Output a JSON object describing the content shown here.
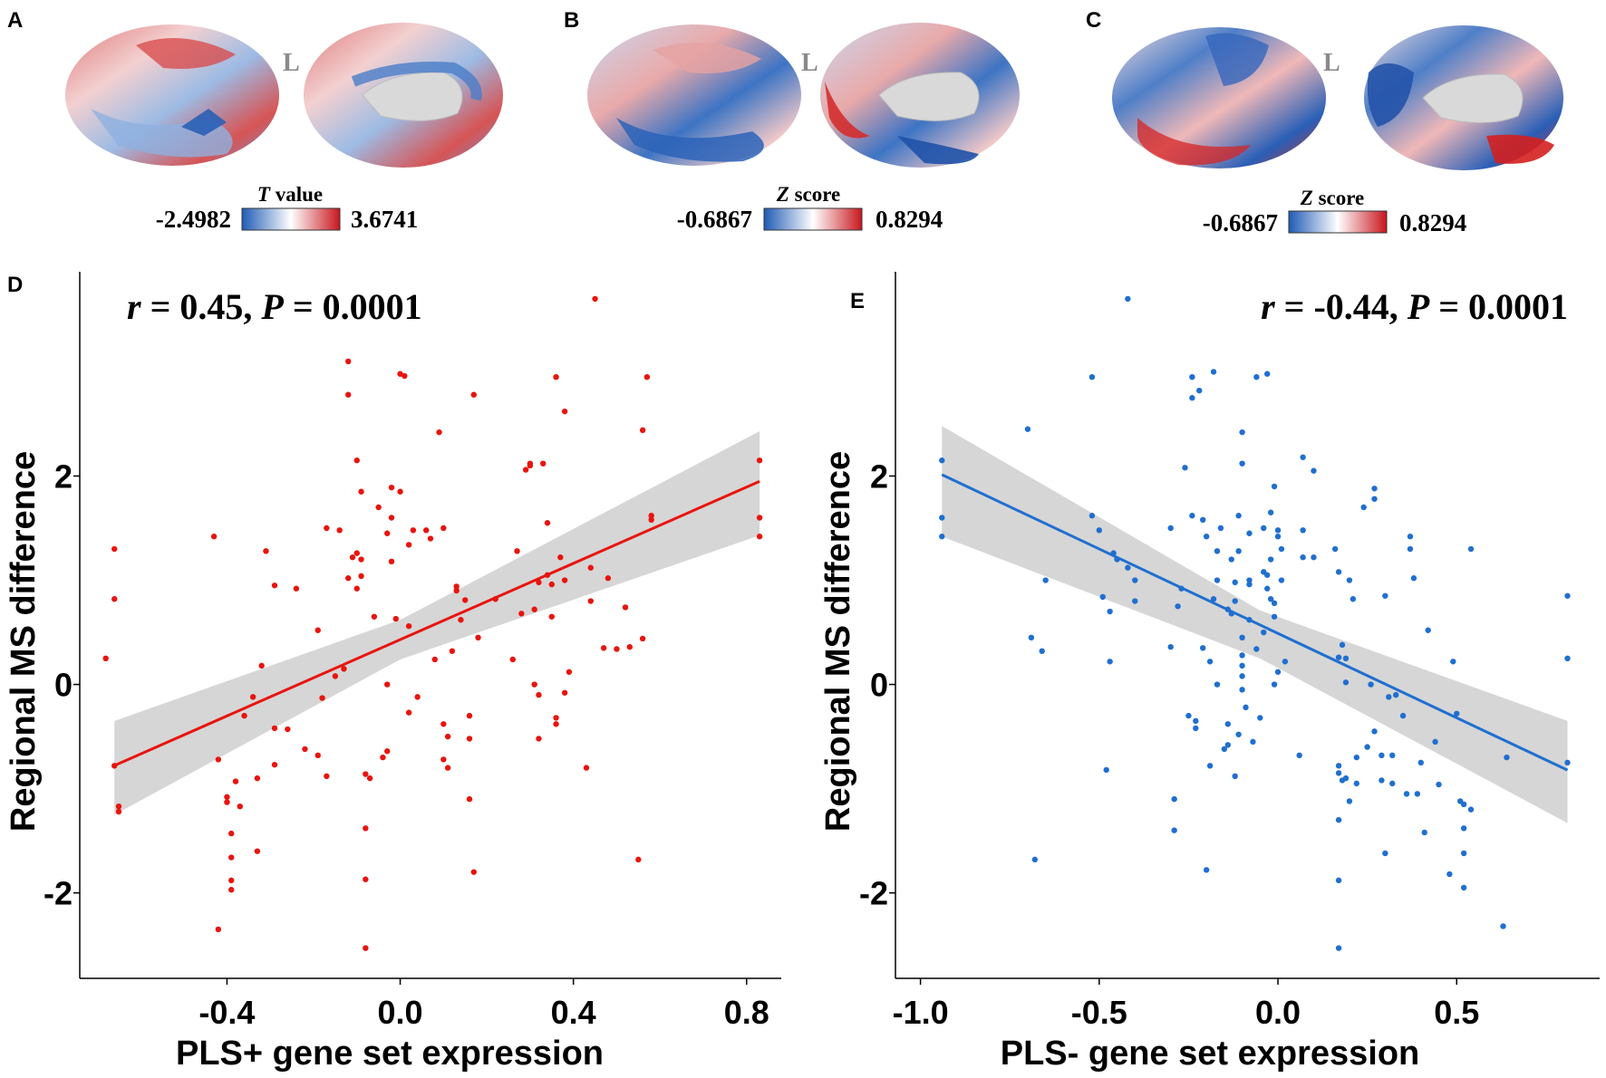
{
  "colors": {
    "neg": "#1f5bb4",
    "mid": "#ffffff",
    "pos": "#c8161e",
    "red_line": "#e8140e",
    "blue_line": "#1f6fd0",
    "band": "#d6d6d6",
    "brain_gray": "#d9d9d9"
  },
  "brains": [
    {
      "panel": "A",
      "hemisphere_label": "L",
      "scale_title_italic": "T",
      "scale_title_rest": " value",
      "min_label": "-2.4982",
      "max_label": "3.6741"
    },
    {
      "panel": "B",
      "hemisphere_label": "L",
      "scale_title_italic": "Z",
      "scale_title_rest": " score",
      "min_label": "-0.6867",
      "max_label": "0.8294"
    },
    {
      "panel": "C",
      "hemisphere_label": "L",
      "scale_title_italic": "Z",
      "scale_title_rest": " score",
      "min_label": "-0.6867",
      "max_label": "0.8294"
    }
  ],
  "chart_data": [
    {
      "panel": "D",
      "type": "scatter",
      "title": "",
      "xlabel": "PLS+ gene set expression",
      "ylabel": "Regional MS difference",
      "stat_r": "0.45",
      "stat_p": "0.0001",
      "xlim": [
        -0.74,
        0.88
      ],
      "ylim": [
        -2.82,
        3.96
      ],
      "xticks": [
        -0.4,
        0.0,
        0.4,
        0.8
      ],
      "xtick_labels": [
        "-0.4",
        "0.0",
        "0.4",
        "0.8"
      ],
      "yticks": [
        -2,
        0,
        2
      ],
      "ytick_labels": [
        "-2",
        "0",
        "2"
      ],
      "fit": {
        "slope": 1.83,
        "intercept": 0.43,
        "x_range": [
          -0.66,
          0.83
        ]
      },
      "band": [
        [
          -0.66,
          -0.35,
          -1.25
        ],
        [
          0.0,
          0.62,
          0.24
        ],
        [
          0.83,
          2.43,
          1.43
        ]
      ],
      "points": [
        [
          -0.66,
          1.3
        ],
        [
          -0.66,
          0.82
        ],
        [
          -0.68,
          0.25
        ],
        [
          -0.66,
          -0.78
        ],
        [
          -0.65,
          -1.17
        ],
        [
          -0.65,
          -1.22
        ],
        [
          -0.43,
          1.42
        ],
        [
          -0.42,
          -0.72
        ],
        [
          -0.42,
          -2.35
        ],
        [
          -0.4,
          -1.08
        ],
        [
          -0.4,
          -1.13
        ],
        [
          -0.39,
          -1.43
        ],
        [
          -0.39,
          -1.66
        ],
        [
          -0.39,
          -1.88
        ],
        [
          -0.39,
          -1.97
        ],
        [
          -0.38,
          -0.93
        ],
        [
          -0.37,
          -1.17
        ],
        [
          -0.36,
          -0.3
        ],
        [
          -0.34,
          -0.12
        ],
        [
          -0.33,
          -0.9
        ],
        [
          -0.33,
          -1.6
        ],
        [
          -0.32,
          0.18
        ],
        [
          -0.31,
          1.28
        ],
        [
          -0.29,
          0.95
        ],
        [
          -0.29,
          -0.77
        ],
        [
          -0.29,
          -0.42
        ],
        [
          -0.26,
          -0.43
        ],
        [
          -0.24,
          0.92
        ],
        [
          -0.22,
          -0.62
        ],
        [
          -0.19,
          -0.68
        ],
        [
          -0.19,
          0.52
        ],
        [
          -0.18,
          -0.13
        ],
        [
          -0.17,
          -0.88
        ],
        [
          -0.17,
          1.5
        ],
        [
          -0.15,
          0.08
        ],
        [
          -0.14,
          1.48
        ],
        [
          -0.13,
          0.15
        ],
        [
          -0.12,
          2.78
        ],
        [
          -0.12,
          3.1
        ],
        [
          -0.12,
          1.02
        ],
        [
          -0.11,
          1.22
        ],
        [
          -0.1,
          0.92
        ],
        [
          -0.1,
          1.26
        ],
        [
          -0.1,
          2.15
        ],
        [
          -0.09,
          1.04
        ],
        [
          -0.09,
          1.2
        ],
        [
          -0.09,
          1.85
        ],
        [
          -0.08,
          -0.86
        ],
        [
          -0.08,
          -1.87
        ],
        [
          -0.08,
          -2.53
        ],
        [
          -0.08,
          -1.38
        ],
        [
          -0.07,
          -0.9
        ],
        [
          -0.06,
          0.65
        ],
        [
          -0.05,
          1.7
        ],
        [
          -0.04,
          -0.7
        ],
        [
          -0.03,
          -0.64
        ],
        [
          -0.03,
          0.0
        ],
        [
          -0.03,
          1.45
        ],
        [
          -0.02,
          1.89
        ],
        [
          -0.02,
          1.6
        ],
        [
          -0.02,
          1.18
        ],
        [
          -0.01,
          0.63
        ],
        [
          0.0,
          2.98
        ],
        [
          0.0,
          1.85
        ],
        [
          0.01,
          2.96
        ],
        [
          0.02,
          1.34
        ],
        [
          0.02,
          0.56
        ],
        [
          0.02,
          -0.27
        ],
        [
          0.03,
          1.48
        ],
        [
          0.04,
          -0.12
        ],
        [
          0.06,
          1.48
        ],
        [
          0.07,
          1.4
        ],
        [
          0.08,
          0.24
        ],
        [
          0.09,
          2.42
        ],
        [
          0.1,
          1.5
        ],
        [
          0.1,
          -0.38
        ],
        [
          0.1,
          -0.72
        ],
        [
          0.11,
          -0.8
        ],
        [
          0.11,
          -0.5
        ],
        [
          0.12,
          0.32
        ],
        [
          0.13,
          0.94
        ],
        [
          0.13,
          0.9
        ],
        [
          0.14,
          0.62
        ],
        [
          0.15,
          0.81
        ],
        [
          0.16,
          -0.3
        ],
        [
          0.16,
          -0.52
        ],
        [
          0.16,
          -1.1
        ],
        [
          0.17,
          2.78
        ],
        [
          0.17,
          -1.8
        ],
        [
          0.18,
          0.45
        ],
        [
          0.22,
          0.82
        ],
        [
          0.26,
          0.24
        ],
        [
          0.27,
          1.28
        ],
        [
          0.28,
          0.68
        ],
        [
          0.29,
          2.06
        ],
        [
          0.3,
          2.12
        ],
        [
          0.3,
          2.1
        ],
        [
          0.31,
          0.72
        ],
        [
          0.31,
          0.0
        ],
        [
          0.32,
          -0.1
        ],
        [
          0.32,
          -0.52
        ],
        [
          0.32,
          0.98
        ],
        [
          0.33,
          2.12
        ],
        [
          0.34,
          1.55
        ],
        [
          0.34,
          1.05
        ],
        [
          0.35,
          0.65
        ],
        [
          0.35,
          0.96
        ],
        [
          0.36,
          2.95
        ],
        [
          0.36,
          -0.32
        ],
        [
          0.36,
          -0.38
        ],
        [
          0.37,
          1.22
        ],
        [
          0.38,
          -0.08
        ],
        [
          0.38,
          2.62
        ],
        [
          0.38,
          1.0
        ],
        [
          0.39,
          0.12
        ],
        [
          0.43,
          -0.8
        ],
        [
          0.44,
          0.8
        ],
        [
          0.44,
          1.12
        ],
        [
          0.45,
          3.7
        ],
        [
          0.47,
          0.35
        ],
        [
          0.48,
          1.02
        ],
        [
          0.5,
          0.34
        ],
        [
          0.52,
          0.74
        ],
        [
          0.53,
          0.36
        ],
        [
          0.55,
          -1.68
        ],
        [
          0.56,
          2.44
        ],
        [
          0.56,
          0.44
        ],
        [
          0.57,
          2.95
        ],
        [
          0.58,
          1.62
        ],
        [
          0.58,
          1.58
        ],
        [
          0.83,
          2.15
        ],
        [
          0.83,
          1.6
        ],
        [
          0.83,
          1.42
        ]
      ]
    },
    {
      "panel": "E",
      "type": "scatter",
      "title": "",
      "xlabel": "PLS- gene set expression",
      "ylabel": "Regional MS difference",
      "stat_r": "-0.44",
      "stat_p": "0.0001",
      "xlim": [
        -1.07,
        0.9
      ],
      "ylim": [
        -2.82,
        3.96
      ],
      "xticks": [
        -1.0,
        -0.5,
        0.0,
        0.5
      ],
      "xtick_labels": [
        "-1.0",
        "-0.5",
        "0.0",
        "0.5"
      ],
      "yticks": [
        -2,
        0,
        2
      ],
      "ytick_labels": [
        "-2",
        "0",
        "2"
      ],
      "fit": {
        "slope": -1.62,
        "intercept": 0.49,
        "x_range": [
          -0.94,
          0.81
        ]
      },
      "band": [
        [
          -0.94,
          2.48,
          1.42
        ],
        [
          -0.05,
          0.71,
          0.25
        ],
        [
          0.81,
          -0.35,
          -1.33
        ]
      ],
      "points": [
        [
          -0.94,
          2.15
        ],
        [
          -0.94,
          1.6
        ],
        [
          -0.94,
          1.42
        ],
        [
          -0.7,
          2.45
        ],
        [
          -0.69,
          0.45
        ],
        [
          -0.68,
          -1.68
        ],
        [
          -0.66,
          0.32
        ],
        [
          -0.65,
          1.0
        ],
        [
          -0.52,
          2.95
        ],
        [
          -0.52,
          1.62
        ],
        [
          -0.5,
          1.48
        ],
        [
          -0.49,
          0.84
        ],
        [
          -0.48,
          -0.82
        ],
        [
          -0.47,
          0.22
        ],
        [
          -0.47,
          0.7
        ],
        [
          -0.46,
          1.26
        ],
        [
          -0.45,
          1.2
        ],
        [
          -0.42,
          3.7
        ],
        [
          -0.42,
          1.12
        ],
        [
          -0.4,
          0.8
        ],
        [
          -0.4,
          1.0
        ],
        [
          -0.3,
          1.5
        ],
        [
          -0.3,
          0.36
        ],
        [
          -0.29,
          -1.1
        ],
        [
          -0.29,
          -1.4
        ],
        [
          -0.28,
          0.75
        ],
        [
          -0.27,
          0.92
        ],
        [
          -0.26,
          2.08
        ],
        [
          -0.25,
          -0.3
        ],
        [
          -0.24,
          2.95
        ],
        [
          -0.24,
          2.75
        ],
        [
          -0.24,
          1.62
        ],
        [
          -0.23,
          -0.35
        ],
        [
          -0.23,
          -0.42
        ],
        [
          -0.22,
          2.82
        ],
        [
          -0.21,
          0.35
        ],
        [
          -0.21,
          1.58
        ],
        [
          -0.2,
          -1.78
        ],
        [
          -0.2,
          1.42
        ],
        [
          -0.19,
          0.22
        ],
        [
          -0.19,
          -0.78
        ],
        [
          -0.18,
          0.82
        ],
        [
          -0.18,
          3.0
        ],
        [
          -0.17,
          1.0
        ],
        [
          -0.17,
          1.28
        ],
        [
          -0.17,
          0.0
        ],
        [
          -0.16,
          1.5
        ],
        [
          -0.15,
          -0.62
        ],
        [
          -0.14,
          -0.38
        ],
        [
          -0.14,
          -0.58
        ],
        [
          -0.14,
          0.72
        ],
        [
          -0.13,
          0.68
        ],
        [
          -0.13,
          1.2
        ],
        [
          -0.12,
          0.8
        ],
        [
          -0.12,
          -0.88
        ],
        [
          -0.12,
          0.98
        ],
        [
          -0.11,
          -0.48
        ],
        [
          -0.11,
          1.28
        ],
        [
          -0.11,
          1.62
        ],
        [
          -0.1,
          2.12
        ],
        [
          -0.1,
          2.42
        ],
        [
          -0.1,
          0.18
        ],
        [
          -0.1,
          0.28
        ],
        [
          -0.1,
          0.45
        ],
        [
          -0.1,
          0.08
        ],
        [
          -0.1,
          -0.05
        ],
        [
          -0.09,
          -0.22
        ],
        [
          -0.08,
          1.45
        ],
        [
          -0.08,
          0.96
        ],
        [
          -0.08,
          0.62
        ],
        [
          -0.08,
          1.0
        ],
        [
          -0.07,
          -0.55
        ],
        [
          -0.06,
          2.95
        ],
        [
          -0.06,
          0.34
        ],
        [
          -0.05,
          -0.32
        ],
        [
          -0.04,
          1.08
        ],
        [
          -0.04,
          1.5
        ],
        [
          -0.04,
          0.5
        ],
        [
          -0.03,
          2.98
        ],
        [
          -0.03,
          0.92
        ],
        [
          -0.03,
          1.05
        ],
        [
          -0.02,
          1.2
        ],
        [
          -0.02,
          0.82
        ],
        [
          -0.02,
          1.65
        ],
        [
          -0.01,
          1.9
        ],
        [
          -0.01,
          0.65
        ],
        [
          -0.01,
          0.0
        ],
        [
          -0.01,
          0.78
        ],
        [
          0.0,
          1.42
        ],
        [
          0.0,
          1.48
        ],
        [
          0.0,
          0.12
        ],
        [
          0.01,
          1.3
        ],
        [
          0.01,
          1.0
        ],
        [
          0.02,
          0.22
        ],
        [
          0.06,
          -0.68
        ],
        [
          0.07,
          1.22
        ],
        [
          0.07,
          1.48
        ],
        [
          0.07,
          2.18
        ],
        [
          0.1,
          2.05
        ],
        [
          0.1,
          1.22
        ],
        [
          0.16,
          1.3
        ],
        [
          0.17,
          1.08
        ],
        [
          0.17,
          0.26
        ],
        [
          0.17,
          -0.78
        ],
        [
          0.17,
          -0.85
        ],
        [
          0.17,
          -1.3
        ],
        [
          0.17,
          -1.88
        ],
        [
          0.17,
          -2.53
        ],
        [
          0.18,
          0.38
        ],
        [
          0.18,
          -0.92
        ],
        [
          0.19,
          0.02
        ],
        [
          0.19,
          0.25
        ],
        [
          0.19,
          -0.9
        ],
        [
          0.2,
          1.0
        ],
        [
          0.2,
          -1.12
        ],
        [
          0.21,
          0.82
        ],
        [
          0.22,
          -0.7
        ],
        [
          0.22,
          -0.95
        ],
        [
          0.24,
          1.7
        ],
        [
          0.25,
          -0.6
        ],
        [
          0.26,
          0.0
        ],
        [
          0.27,
          1.78
        ],
        [
          0.27,
          1.88
        ],
        [
          0.27,
          -0.45
        ],
        [
          0.29,
          -0.68
        ],
        [
          0.29,
          -0.92
        ],
        [
          0.3,
          0.85
        ],
        [
          0.3,
          -1.62
        ],
        [
          0.31,
          -0.12
        ],
        [
          0.32,
          -0.68
        ],
        [
          0.32,
          -0.95
        ],
        [
          0.33,
          -0.1
        ],
        [
          0.35,
          -0.3
        ],
        [
          0.36,
          -1.05
        ],
        [
          0.37,
          1.42
        ],
        [
          0.37,
          1.3
        ],
        [
          0.38,
          1.02
        ],
        [
          0.39,
          -1.05
        ],
        [
          0.4,
          -0.75
        ],
        [
          0.41,
          -1.42
        ],
        [
          0.42,
          0.52
        ],
        [
          0.44,
          -0.55
        ],
        [
          0.45,
          -0.96
        ],
        [
          0.48,
          -1.82
        ],
        [
          0.49,
          0.22
        ],
        [
          0.5,
          -0.28
        ],
        [
          0.51,
          -1.12
        ],
        [
          0.52,
          -1.38
        ],
        [
          0.52,
          -1.62
        ],
        [
          0.52,
          -1.95
        ],
        [
          0.52,
          -1.15
        ],
        [
          0.54,
          -1.2
        ],
        [
          0.54,
          1.3
        ],
        [
          0.63,
          -2.32
        ],
        [
          0.64,
          -0.7
        ],
        [
          0.81,
          0.85
        ],
        [
          0.81,
          0.25
        ],
        [
          0.81,
          -0.75
        ]
      ]
    }
  ]
}
